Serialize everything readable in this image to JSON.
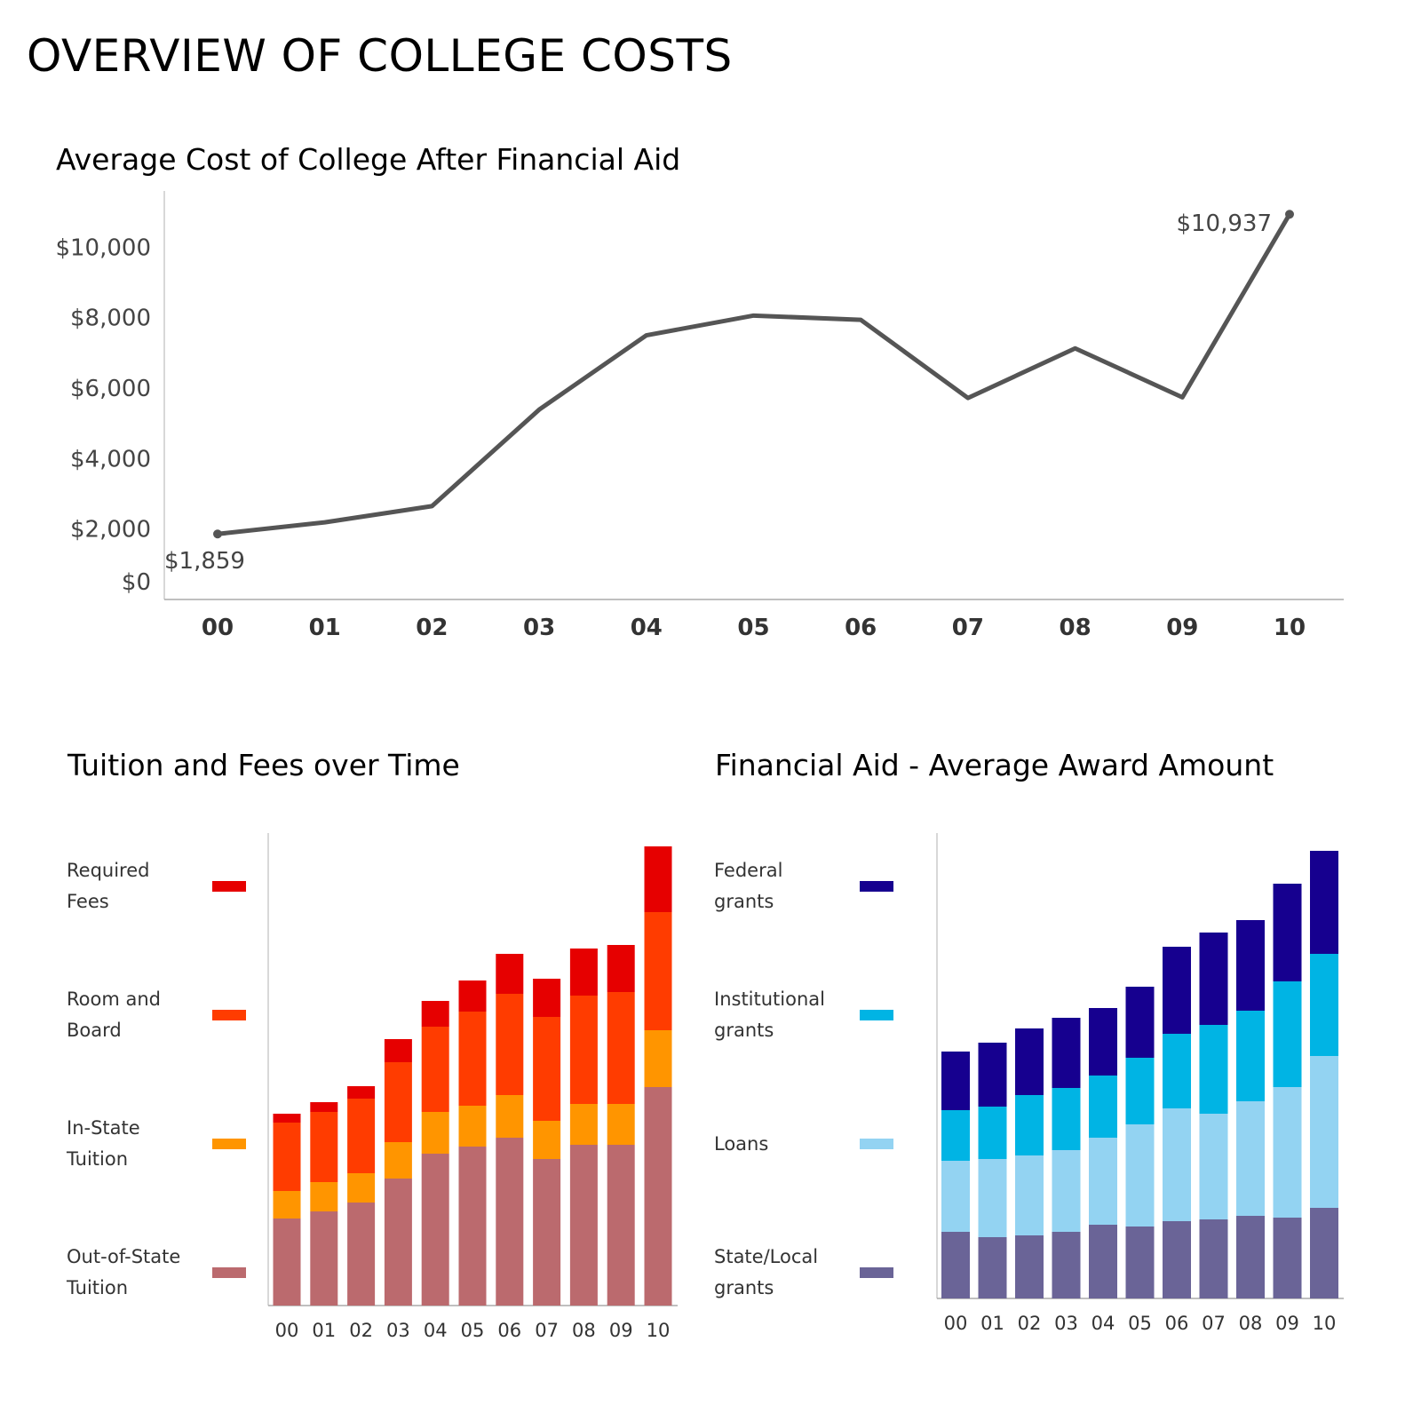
{
  "title": "OVERVIEW OF COLLEGE COSTS",
  "chart_data": [
    {
      "type": "line",
      "title": "Average Cost of College After Financial Aid",
      "categories": [
        "00",
        "01",
        "02",
        "03",
        "04",
        "05",
        "06",
        "07",
        "08",
        "09",
        "10"
      ],
      "values": [
        1859,
        2190,
        2650,
        5390,
        7500,
        8060,
        7940,
        5720,
        7130,
        5740,
        10937
      ],
      "yticks": [
        "$0",
        "$2,000",
        "$4,000",
        "$6,000",
        "$8,000",
        "$10,000"
      ],
      "ytick_values": [
        0,
        2000,
        4000,
        6000,
        8000,
        10000
      ],
      "annotations": [
        "$1,859",
        "$10,937"
      ],
      "color": "#555555",
      "ylim": [
        0,
        11500
      ],
      "grid": false
    },
    {
      "type": "bar",
      "stacked": true,
      "title": "Tuition and Fees over Time",
      "categories": [
        "00",
        "01",
        "02",
        "03",
        "04",
        "05",
        "06",
        "07",
        "08",
        "09",
        "10"
      ],
      "legend_placement": "left",
      "series": [
        {
          "name": "Out-of-State Tuition",
          "label_lines": [
            "Out-of-State",
            "Tuition"
          ],
          "color": "#bb6a6e",
          "values": [
            98,
            106,
            116,
            143,
            171,
            179,
            189,
            165,
            181,
            181,
            246
          ]
        },
        {
          "name": "In-State Tuition",
          "label_lines": [
            "In-State",
            "Tuition"
          ],
          "color": "#ff9500",
          "values": [
            31,
            33,
            33,
            41,
            47,
            46,
            48,
            43,
            46,
            46,
            64
          ]
        },
        {
          "name": "Room and Board",
          "label_lines": [
            "Room and",
            "Board"
          ],
          "color": "#ff3c00",
          "values": [
            77,
            79,
            84,
            90,
            96,
            106,
            114,
            117,
            122,
            126,
            133
          ]
        },
        {
          "name": "Required Fees",
          "label_lines": [
            "Required",
            "Fees"
          ],
          "color": "#e60000",
          "values": [
            10,
            11,
            14,
            26,
            29,
            35,
            45,
            43,
            53,
            53,
            74
          ]
        }
      ]
    },
    {
      "type": "bar",
      "stacked": true,
      "title": "Financial Aid - Average Award Amount",
      "categories": [
        "00",
        "01",
        "02",
        "03",
        "04",
        "05",
        "06",
        "07",
        "08",
        "09",
        "10"
      ],
      "legend_placement": "left",
      "series": [
        {
          "name": "State/Local grants",
          "label_lines": [
            "State/Local",
            "grants"
          ],
          "color": "#6a6497",
          "values": [
            75,
            69,
            71,
            75,
            83,
            81,
            87,
            89,
            93,
            91,
            102
          ]
        },
        {
          "name": "Loans",
          "label_lines": [
            "Loans"
          ],
          "color": "#93d3f2",
          "values": [
            80,
            88,
            90,
            92,
            98,
            115,
            127,
            119,
            129,
            147,
            171
          ]
        },
        {
          "name": "Institutional grants",
          "label_lines": [
            "Institutional",
            "grants"
          ],
          "color": "#00b4e4",
          "values": [
            57,
            59,
            68,
            70,
            70,
            75,
            84,
            100,
            102,
            119,
            115
          ]
        },
        {
          "name": "Federal grants",
          "label_lines": [
            "Federal",
            "grants"
          ],
          "color": "#16008f",
          "values": [
            66,
            72,
            75,
            79,
            76,
            80,
            98,
            104,
            102,
            110,
            116
          ]
        }
      ]
    }
  ]
}
